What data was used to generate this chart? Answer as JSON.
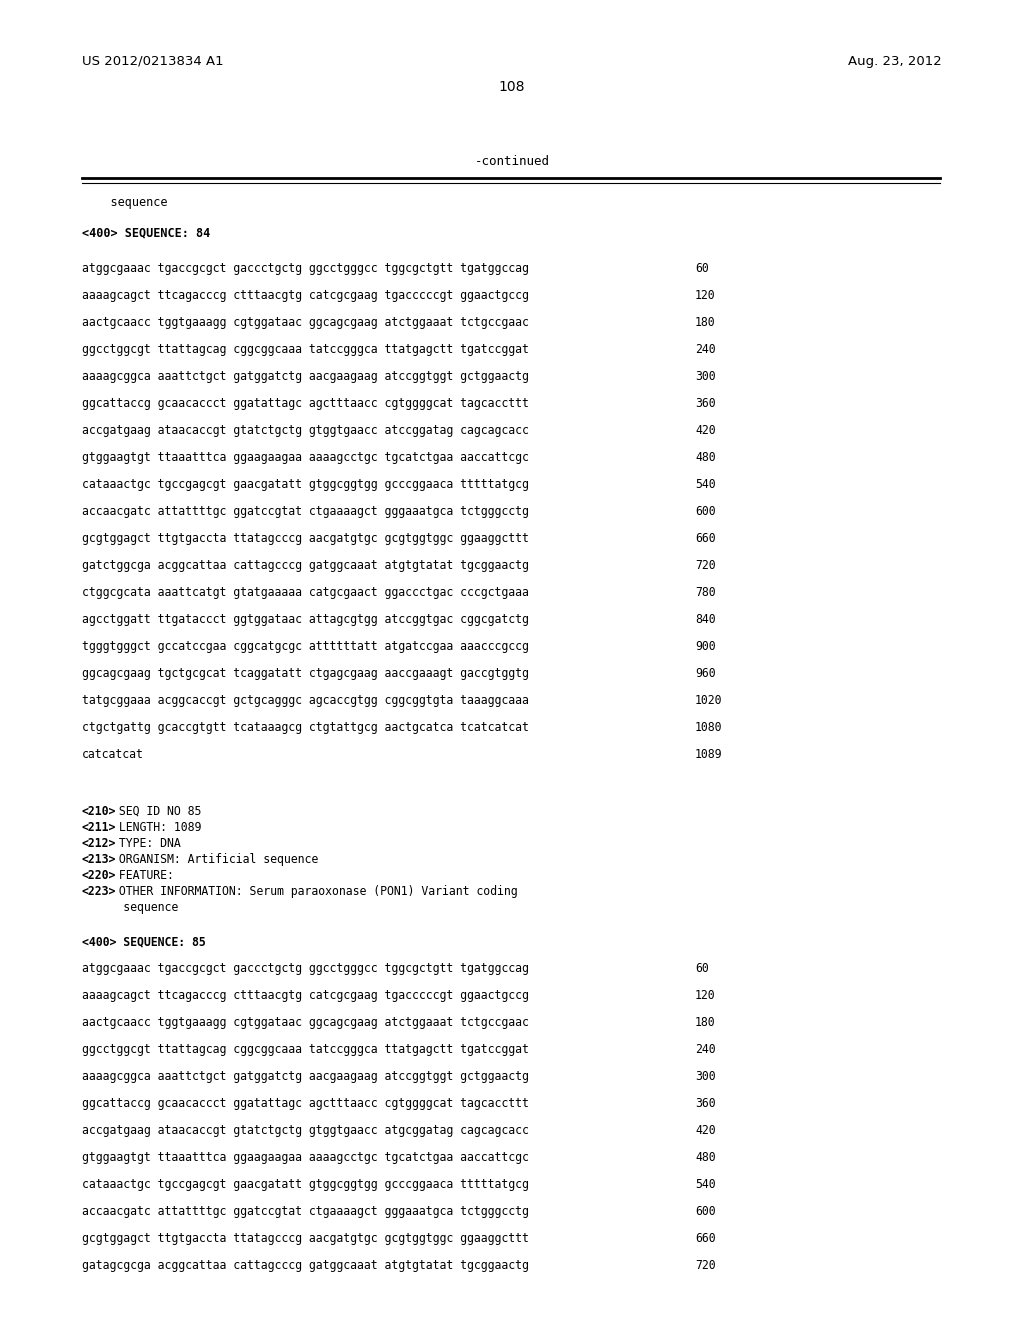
{
  "top_left": "US 2012/0213834 A1",
  "top_right": "Aug. 23, 2012",
  "page_number": "108",
  "continued_label": "-continued",
  "background_color": "#ffffff",
  "text_color": "#000000",
  "sequence_header_label": "    sequence",
  "seq84_header": "<400> SEQUENCE: 84",
  "seq84_lines": [
    {
      "text": "atggcgaaac tgaccgcgct gaccctgctg ggcctgggcc tggcgctgtt tgatggccag",
      "num": "60"
    },
    {
      "text": "aaaagcagct ttcagacccg ctttaacgtg catcgcgaag tgacccccgt ggaactgccg",
      "num": "120"
    },
    {
      "text": "aactgcaacc tggtgaaagg cgtggataac ggcagcgaag atctggaaat tctgccgaac",
      "num": "180"
    },
    {
      "text": "ggcctggcgt ttattagcag cggcggcaaa tatccgggca ttatgagctt tgatccggat",
      "num": "240"
    },
    {
      "text": "aaaagcggca aaattctgct gatggatctg aacgaagaag atccggtggt gctggaactg",
      "num": "300"
    },
    {
      "text": "ggcattaccg gcaacaccct ggatattagc agctttaacc cgtggggcat tagcaccttt",
      "num": "360"
    },
    {
      "text": "accgatgaag ataacaccgt gtatctgctg gtggtgaacc atccggatag cagcagcacc",
      "num": "420"
    },
    {
      "text": "gtggaagtgt ttaaatttca ggaagaagaa aaaagcctgc tgcatctgaa aaccattcgc",
      "num": "480"
    },
    {
      "text": "cataaactgc tgccgagcgt gaacgatatt gtggcggtgg gcccggaaca tttttatgcg",
      "num": "540"
    },
    {
      "text": "accaacgatc attattttgc ggatccgtat ctgaaaagct gggaaatgca tctgggcctg",
      "num": "600"
    },
    {
      "text": "gcgtggagct ttgtgaccta ttatagcccg aacgatgtgc gcgtggtggc ggaaggcttt",
      "num": "660"
    },
    {
      "text": "gatctggcga acggcattaa cattagcccg gatggcaaat atgtgtatat tgcggaactg",
      "num": "720"
    },
    {
      "text": "ctggcgcata aaattcatgt gtatgaaaaa catgcgaact ggaccctgac cccgctgaaa",
      "num": "780"
    },
    {
      "text": "agcctggatt ttgataccct ggtggataac attagcgtgg atccggtgac cggcgatctg",
      "num": "840"
    },
    {
      "text": "tgggtgggct gccatccgaa cggcatgcgc attttttatt atgatccgaa aaacccgccg",
      "num": "900"
    },
    {
      "text": "ggcagcgaag tgctgcgcat tcaggatatt ctgagcgaag aaccgaaagt gaccgtggtg",
      "num": "960"
    },
    {
      "text": "tatgcggaaa acggcaccgt gctgcagggc agcaccgtgg cggcggtgta taaaggcaaa",
      "num": "1020"
    },
    {
      "text": "ctgctgattg gcaccgtgtt tcataaagcg ctgtattgcg aactgcatca tcatcatcat",
      "num": "1080"
    },
    {
      "text": "catcatcat",
      "num": "1089"
    }
  ],
  "seq85_meta": [
    "<210> SEQ ID NO 85",
    "<211> LENGTH: 1089",
    "<212> TYPE: DNA",
    "<213> ORGANISM: Artificial sequence",
    "<220> FEATURE:",
    "<223> OTHER INFORMATION: Serum paraoxonase (PON1) Variant coding",
    "      sequence"
  ],
  "seq85_header": "<400> SEQUENCE: 85",
  "seq85_lines": [
    {
      "text": "atggcgaaac tgaccgcgct gaccctgctg ggcctgggcc tggcgctgtt tgatggccag",
      "num": "60"
    },
    {
      "text": "aaaagcagct ttcagacccg ctttaacgtg catcgcgaag tgacccccgt ggaactgccg",
      "num": "120"
    },
    {
      "text": "aactgcaacc tggtgaaagg cgtggataac ggcagcgaag atctggaaat tctgccgaac",
      "num": "180"
    },
    {
      "text": "ggcctggcgt ttattagcag cggcggcaaa tatccgggca ttatgagctt tgatccggat",
      "num": "240"
    },
    {
      "text": "aaaagcggca aaattctgct gatggatctg aacgaagaag atccggtggt gctggaactg",
      "num": "300"
    },
    {
      "text": "ggcattaccg gcaacaccct ggatattagc agctttaacc cgtggggcat tagcaccttt",
      "num": "360"
    },
    {
      "text": "accgatgaag ataacaccgt gtatctgctg gtggtgaacc atgcggatag cagcagcacc",
      "num": "420"
    },
    {
      "text": "gtggaagtgt ttaaatttca ggaagaagaa aaaagcctgc tgcatctgaa aaccattcgc",
      "num": "480"
    },
    {
      "text": "cataaactgc tgccgagcgt gaacgatatt gtggcggtgg gcccggaaca tttttatgcg",
      "num": "540"
    },
    {
      "text": "accaacgatc attattttgc ggatccgtat ctgaaaagct gggaaatgca tctgggcctg",
      "num": "600"
    },
    {
      "text": "gcgtggagct ttgtgaccta ttatagcccg aacgatgtgc gcgtggtggc ggaaggcttt",
      "num": "660"
    },
    {
      "text": "gatagcgcga acggcattaa cattagcccg gatggcaaat atgtgtatat tgcggaactg",
      "num": "720"
    }
  ]
}
